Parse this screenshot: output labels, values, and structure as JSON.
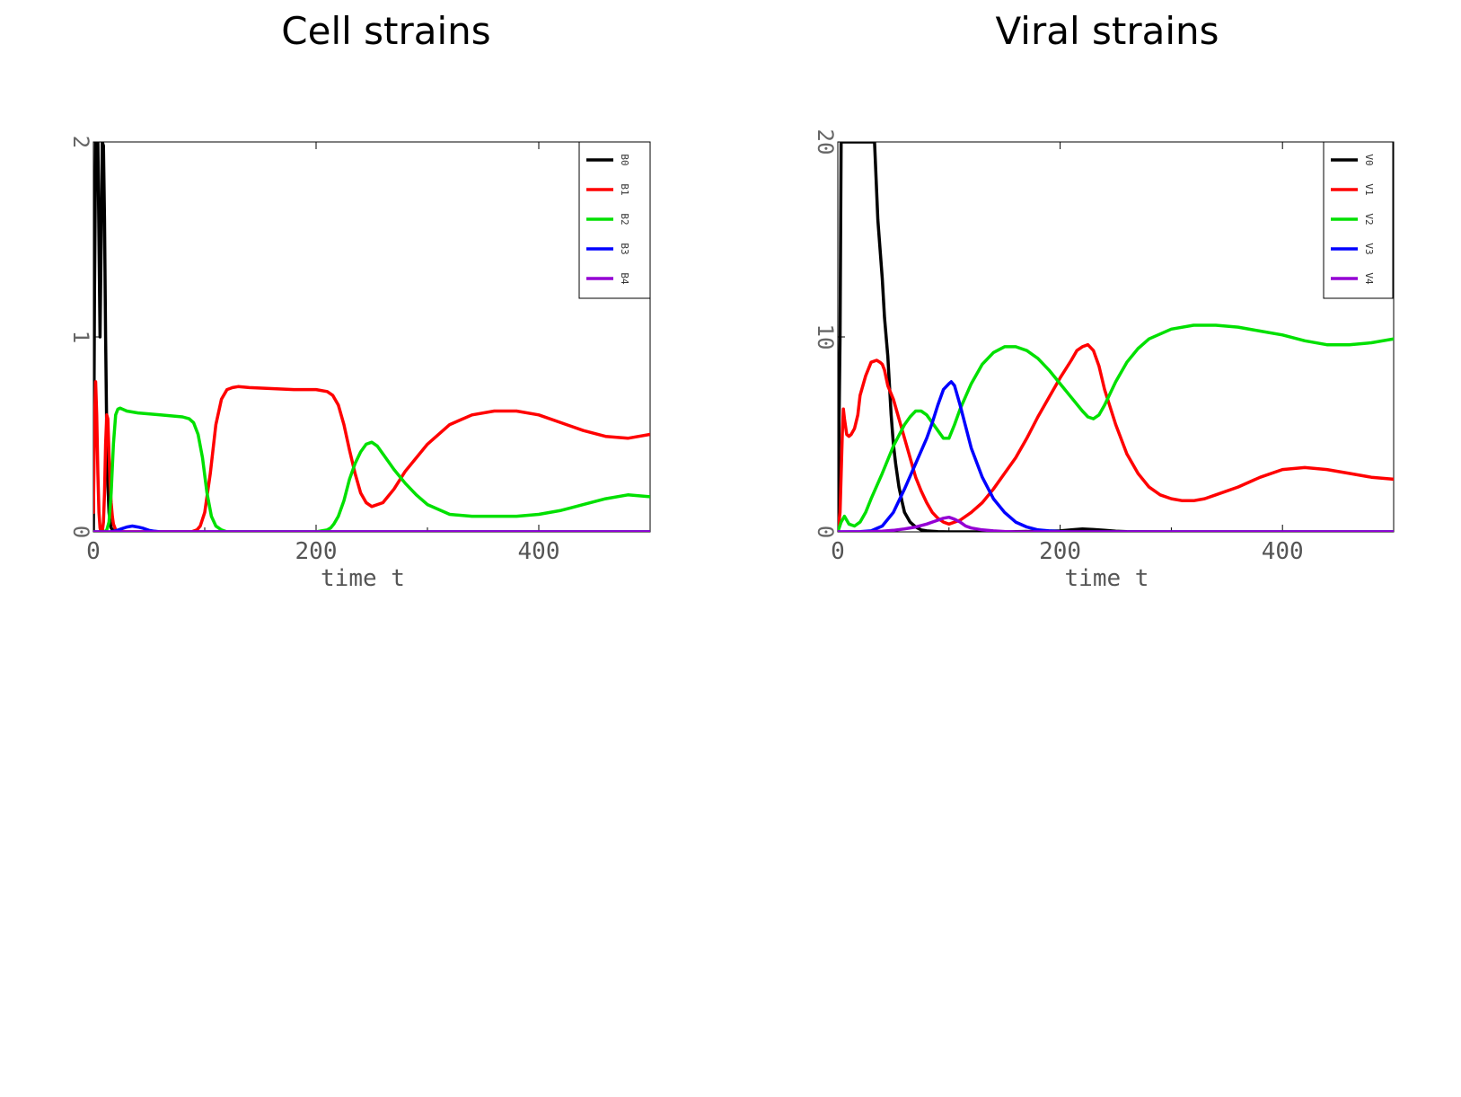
{
  "titles": {
    "left": "Cell strains",
    "right": "Viral strains"
  },
  "colors": {
    "c0": "#000000",
    "c1": "#ff0000",
    "c2": "#00e000",
    "c3": "#0000ff",
    "c4": "#9400d3"
  },
  "chart_data": [
    {
      "type": "line",
      "title": "Cell strains",
      "xlabel": "time t",
      "ylabel": "",
      "xlim": [
        0,
        500
      ],
      "ylim": [
        0,
        2
      ],
      "xticks": [
        0,
        200,
        400
      ],
      "yticks": [
        0,
        1,
        2
      ],
      "xtick_labels": [
        "0",
        "200",
        "400"
      ],
      "ytick_labels": [
        "0",
        "1",
        "2"
      ],
      "legend_position": "top-right",
      "series": [
        {
          "name": "B0",
          "color_key": "c0",
          "x": [
            0,
            1,
            2,
            3,
            4,
            5,
            6,
            7,
            8,
            9,
            10,
            11,
            12,
            13,
            14,
            15,
            16,
            18,
            20,
            25,
            30,
            500
          ],
          "y": [
            0,
            1.2,
            2.0,
            2.0,
            2.0,
            1.5,
            1.0,
            1.5,
            2.0,
            1.98,
            1.6,
            1.0,
            0.5,
            0.25,
            0.1,
            0.05,
            0.02,
            0.005,
            0,
            0,
            0,
            0
          ]
        },
        {
          "name": "B1",
          "color_key": "c1",
          "x": [
            0,
            1,
            2,
            3,
            4,
            5,
            6,
            7,
            8,
            9,
            10,
            11,
            12,
            13,
            14,
            15,
            16,
            17,
            18,
            20,
            22,
            25,
            30,
            40,
            60,
            80,
            88,
            93,
            96,
            100,
            105,
            110,
            115,
            120,
            125,
            130,
            140,
            160,
            180,
            200,
            210,
            215,
            220,
            225,
            230,
            235,
            240,
            245,
            250,
            260,
            270,
            280,
            300,
            320,
            340,
            360,
            380,
            400,
            420,
            440,
            460,
            480,
            500
          ],
          "y": [
            0.1,
            0.55,
            0.77,
            0.6,
            0.3,
            0.1,
            0.02,
            0,
            0,
            0.05,
            0.2,
            0.45,
            0.6,
            0.58,
            0.4,
            0.25,
            0.15,
            0.08,
            0.04,
            0.01,
            0,
            0,
            0,
            0,
            0,
            0,
            0,
            0.01,
            0.03,
            0.1,
            0.3,
            0.55,
            0.68,
            0.73,
            0.74,
            0.745,
            0.74,
            0.735,
            0.73,
            0.73,
            0.72,
            0.7,
            0.65,
            0.55,
            0.42,
            0.3,
            0.2,
            0.15,
            0.13,
            0.15,
            0.22,
            0.31,
            0.45,
            0.55,
            0.6,
            0.62,
            0.62,
            0.6,
            0.56,
            0.52,
            0.49,
            0.48,
            0.5
          ]
        },
        {
          "name": "B2",
          "color_key": "c2",
          "x": [
            0,
            5,
            8,
            10,
            12,
            14,
            16,
            18,
            20,
            22,
            24,
            26,
            30,
            40,
            60,
            80,
            86,
            90,
            94,
            98,
            102,
            106,
            110,
            115,
            120,
            130,
            200,
            205,
            210,
            213,
            216,
            220,
            225,
            230,
            235,
            240,
            245,
            250,
            255,
            260,
            265,
            270,
            280,
            290,
            300,
            320,
            340,
            360,
            380,
            400,
            420,
            440,
            460,
            480,
            500
          ],
          "y": [
            0,
            0,
            0,
            0,
            0.01,
            0.05,
            0.2,
            0.45,
            0.6,
            0.63,
            0.635,
            0.63,
            0.62,
            0.61,
            0.6,
            0.59,
            0.58,
            0.56,
            0.5,
            0.38,
            0.2,
            0.08,
            0.03,
            0.01,
            0,
            0,
            0,
            0.005,
            0.01,
            0.02,
            0.04,
            0.08,
            0.16,
            0.27,
            0.35,
            0.41,
            0.45,
            0.46,
            0.44,
            0.4,
            0.36,
            0.32,
            0.25,
            0.19,
            0.14,
            0.09,
            0.08,
            0.08,
            0.08,
            0.09,
            0.11,
            0.14,
            0.17,
            0.19,
            0.18
          ]
        },
        {
          "name": "B3",
          "color_key": "c3",
          "x": [
            0,
            15,
            20,
            25,
            30,
            35,
            40,
            45,
            50,
            55,
            60,
            500
          ],
          "y": [
            0,
            0,
            0.005,
            0.015,
            0.025,
            0.03,
            0.025,
            0.018,
            0.008,
            0.003,
            0,
            0
          ]
        },
        {
          "name": "B4",
          "color_key": "c4",
          "x": [
            0,
            500
          ],
          "y": [
            0,
            0
          ]
        }
      ]
    },
    {
      "type": "line",
      "title": "Viral strains",
      "xlabel": "time t",
      "ylabel": "",
      "xlim": [
        0,
        500
      ],
      "ylim": [
        0,
        20
      ],
      "xticks": [
        0,
        200,
        400
      ],
      "yticks": [
        0,
        10,
        20
      ],
      "xtick_labels": [
        "0",
        "200",
        "400"
      ],
      "ytick_labels": [
        "0",
        "10",
        "20"
      ],
      "legend_position": "top-right",
      "series": [
        {
          "name": "V0",
          "color_key": "c0",
          "x": [
            0,
            2,
            3,
            4,
            5,
            6,
            10,
            20,
            30,
            33,
            36,
            40,
            42,
            45,
            48,
            50,
            52,
            55,
            58,
            60,
            65,
            70,
            75,
            80,
            90,
            100,
            150,
            200,
            210,
            220,
            230,
            240,
            250,
            260,
            300,
            500
          ],
          "y": [
            0,
            10,
            20,
            20,
            20,
            20,
            20,
            20,
            20,
            20,
            16,
            13,
            11,
            9,
            6,
            4.5,
            3.5,
            2.3,
            1.5,
            1,
            0.5,
            0.25,
            0.1,
            0.05,
            0.01,
            0,
            0,
            0.05,
            0.1,
            0.15,
            0.12,
            0.08,
            0.03,
            0.01,
            0,
            0
          ]
        },
        {
          "name": "V1",
          "color_key": "c1",
          "x": [
            0,
            2,
            4,
            5,
            6,
            8,
            10,
            12,
            15,
            18,
            20,
            25,
            30,
            35,
            38,
            40,
            42,
            45,
            50,
            55,
            60,
            65,
            70,
            75,
            80,
            85,
            90,
            95,
            100,
            110,
            120,
            130,
            140,
            150,
            160,
            170,
            180,
            190,
            200,
            210,
            215,
            220,
            225,
            230,
            235,
            240,
            250,
            260,
            270,
            280,
            290,
            300,
            310,
            320,
            330,
            340,
            360,
            380,
            400,
            420,
            440,
            460,
            480,
            500
          ],
          "y": [
            0,
            1,
            5,
            6.3,
            5.8,
            5,
            4.9,
            5,
            5.3,
            6,
            7,
            8,
            8.7,
            8.8,
            8.7,
            8.6,
            8.3,
            7.5,
            6.8,
            5.8,
            4.8,
            3.8,
            2.8,
            2.1,
            1.5,
            1,
            0.7,
            0.5,
            0.4,
            0.6,
            1,
            1.5,
            2.2,
            3,
            3.8,
            4.8,
            5.9,
            6.9,
            7.9,
            8.8,
            9.3,
            9.5,
            9.6,
            9.3,
            8.5,
            7.3,
            5.5,
            4,
            3,
            2.3,
            1.9,
            1.7,
            1.6,
            1.6,
            1.7,
            1.9,
            2.3,
            2.8,
            3.2,
            3.3,
            3.2,
            3,
            2.8,
            2.7
          ]
        },
        {
          "name": "V2",
          "color_key": "c2",
          "x": [
            0,
            3,
            6,
            10,
            15,
            20,
            25,
            30,
            40,
            50,
            60,
            65,
            70,
            75,
            80,
            85,
            90,
            95,
            100,
            105,
            110,
            120,
            130,
            140,
            150,
            160,
            170,
            180,
            190,
            200,
            210,
            220,
            225,
            230,
            235,
            240,
            250,
            260,
            270,
            280,
            300,
            320,
            340,
            360,
            380,
            400,
            420,
            440,
            460,
            480,
            500
          ],
          "y": [
            0,
            0.5,
            0.8,
            0.4,
            0.3,
            0.5,
            1,
            1.7,
            3,
            4.4,
            5.5,
            5.9,
            6.2,
            6.2,
            6,
            5.6,
            5.2,
            4.8,
            4.8,
            5.5,
            6.3,
            7.6,
            8.6,
            9.2,
            9.5,
            9.5,
            9.3,
            8.9,
            8.3,
            7.6,
            6.9,
            6.2,
            5.9,
            5.8,
            6,
            6.5,
            7.7,
            8.7,
            9.4,
            9.9,
            10.4,
            10.6,
            10.6,
            10.5,
            10.3,
            10.1,
            9.8,
            9.6,
            9.6,
            9.7,
            9.9
          ]
        },
        {
          "name": "V3",
          "color_key": "c3",
          "x": [
            0,
            20,
            30,
            40,
            50,
            60,
            70,
            80,
            85,
            90,
            95,
            100,
            102,
            105,
            110,
            115,
            120,
            130,
            140,
            150,
            160,
            170,
            180,
            190,
            200,
            210,
            220,
            500
          ],
          "y": [
            0,
            0.01,
            0.05,
            0.3,
            1,
            2.2,
            3.5,
            4.8,
            5.6,
            6.5,
            7.3,
            7.6,
            7.7,
            7.5,
            6.5,
            5.4,
            4.3,
            2.8,
            1.7,
            1,
            0.5,
            0.25,
            0.1,
            0.05,
            0.02,
            0,
            0,
            0
          ]
        },
        {
          "name": "V4",
          "color_key": "c4",
          "x": [
            0,
            20,
            30,
            40,
            50,
            60,
            70,
            80,
            85,
            90,
            95,
            100,
            105,
            110,
            115,
            120,
            130,
            140,
            150,
            160,
            500
          ],
          "y": [
            0,
            0,
            0.01,
            0.03,
            0.08,
            0.15,
            0.25,
            0.4,
            0.5,
            0.6,
            0.7,
            0.75,
            0.65,
            0.5,
            0.3,
            0.2,
            0.1,
            0.05,
            0.02,
            0,
            0
          ]
        }
      ]
    }
  ]
}
